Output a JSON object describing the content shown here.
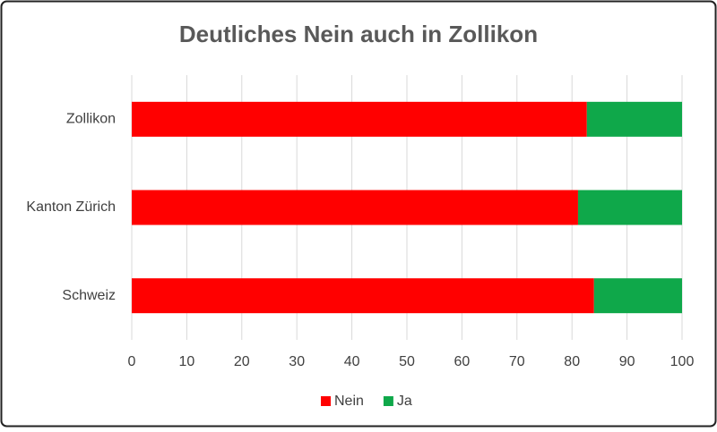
{
  "chart_data": {
    "type": "stacked-barh",
    "title": "Deutliches Nein auch in Zollikon",
    "categories": [
      "Zollikon",
      "Kanton Zürich",
      "Schweiz"
    ],
    "series": [
      {
        "name": "Nein",
        "color": "#ff0000",
        "values": [
          82.7,
          81.1,
          84
        ]
      },
      {
        "name": "Ja",
        "color": "#0fa84a",
        "values": [
          17.3,
          18.9,
          16
        ]
      }
    ],
    "xlim": [
      0,
      100
    ],
    "xticks": [
      0,
      10,
      20,
      30,
      40,
      50,
      60,
      70,
      80,
      90,
      100
    ],
    "grid": true,
    "legend": "bottom"
  }
}
